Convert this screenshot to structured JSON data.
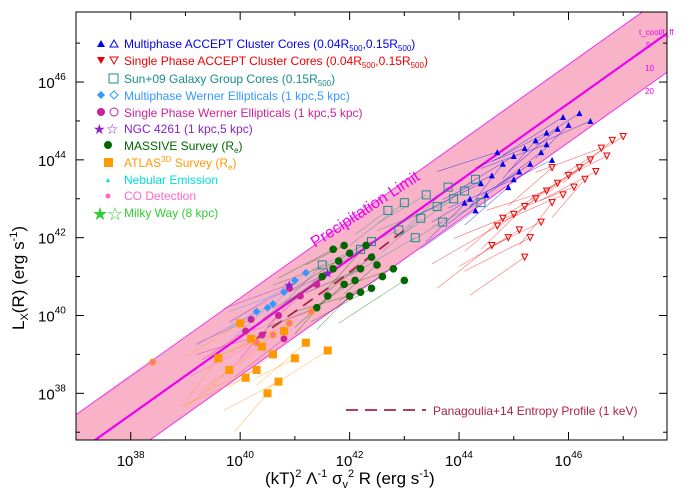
{
  "chart_data": {
    "type": "scatter",
    "title": "",
    "xlabel": "(kT)² Λ⁻¹ σᵥ² R (erg s⁻¹)",
    "ylabel": "Lₓ(R)  (erg s⁻¹)",
    "x_log_range": [
      37.0,
      47.8
    ],
    "y_log_range": [
      36.8,
      47.8
    ],
    "x_tick_exponents": [
      38,
      40,
      42,
      44,
      46
    ],
    "y_tick_exponents": [
      38,
      40,
      42,
      44,
      46
    ],
    "x_tick_labels": [
      "10",
      "10",
      "10",
      "10",
      "10"
    ],
    "x_tick_sups": [
      "38",
      "40",
      "42",
      "44",
      "46"
    ],
    "y_tick_labels": [
      "10",
      "10",
      "10",
      "10",
      "10"
    ],
    "y_tick_sups": [
      "38",
      "40",
      "42",
      "44",
      "46"
    ],
    "precipitation_label": "Precipitation Limit",
    "band_label": "t_cool/t_ff",
    "band_ticks": [
      "5",
      "10",
      "20"
    ],
    "band": {
      "center_offset": -0.55,
      "upper_offset": 0.45,
      "lower_offset": -1.55,
      "slope": 1
    },
    "panagoulia_label": "Panagoulia+14 Entropy Profile (1 keV)",
    "legend": [
      {
        "label": "Multiphase ACCEPT Cluster Cores (0.04R500,0.15R500)",
        "color": "#0000ee",
        "marker": "triangle-up"
      },
      {
        "label": "Single Phase ACCEPT Cluster Cores (0.04R500,0.15R500)",
        "color": "#ee0000",
        "marker": "triangle-down"
      },
      {
        "label": "Sun+09 Galaxy Group Cores (0.15R500)",
        "color": "#1a8c8c",
        "marker": "square-open"
      },
      {
        "label": "Multiphase Werner Ellipticals (1 kpc,5 kpc)",
        "color": "#3399ff",
        "marker": "diamond"
      },
      {
        "label": "Single Phase Werner Ellipticals (1 kpc,5 kpc)",
        "color": "#cc2299",
        "marker": "circle"
      },
      {
        "label": "NGC 4261 (1 kpc,5 kpc)",
        "color": "#8822cc",
        "marker": "star"
      },
      {
        "label": "MASSIVE Survey (Re)",
        "color": "#006600",
        "marker": "circle-filled"
      },
      {
        "label": "ATLAS3D Survey (Re)",
        "color": "#ff9900",
        "marker": "square-filled"
      },
      {
        "label": "Nebular Emission",
        "color": "#00dddd",
        "marker": "small-triangle"
      },
      {
        "label": "CO Detection",
        "color": "#ff66cc",
        "marker": "small-circle"
      },
      {
        "label": "Milky Way (8 kpc)",
        "color": "#33cc33",
        "marker": "star-big"
      }
    ],
    "series": [
      {
        "name": "Multiphase ACCEPT Cluster Cores",
        "color": "#0000ee",
        "points": [
          [
            44.2,
            43.0
          ],
          [
            44.4,
            43.4
          ],
          [
            44.6,
            43.6
          ],
          [
            44.8,
            43.9
          ],
          [
            45.0,
            44.1
          ],
          [
            45.2,
            44.3
          ],
          [
            45.4,
            44.5
          ],
          [
            45.6,
            44.7
          ],
          [
            45.8,
            44.8
          ],
          [
            46.0,
            44.9
          ],
          [
            44.5,
            43.1
          ],
          [
            44.9,
            43.3
          ],
          [
            45.1,
            43.7
          ],
          [
            45.3,
            43.9
          ],
          [
            45.5,
            44.2
          ],
          [
            45.7,
            44.0
          ],
          [
            44.7,
            44.2
          ],
          [
            45.9,
            45.1
          ],
          [
            46.2,
            45.2
          ],
          [
            44.3,
            42.7
          ],
          [
            45.0,
            43.5
          ],
          [
            45.6,
            44.4
          ],
          [
            44.1,
            42.9
          ],
          [
            46.4,
            45.0
          ]
        ]
      },
      {
        "name": "Single Phase ACCEPT Cluster Cores",
        "color": "#ee0000",
        "points": [
          [
            44.8,
            42.5
          ],
          [
            45.0,
            42.6
          ],
          [
            45.2,
            42.8
          ],
          [
            45.4,
            43.0
          ],
          [
            45.6,
            43.2
          ],
          [
            45.8,
            43.4
          ],
          [
            46.0,
            43.6
          ],
          [
            46.2,
            43.8
          ],
          [
            46.4,
            44.0
          ],
          [
            46.6,
            44.3
          ],
          [
            45.1,
            42.2
          ],
          [
            45.3,
            42.0
          ],
          [
            45.5,
            42.4
          ],
          [
            45.7,
            42.9
          ],
          [
            45.9,
            43.1
          ],
          [
            46.1,
            43.3
          ],
          [
            46.3,
            43.5
          ],
          [
            46.5,
            43.7
          ],
          [
            44.6,
            41.8
          ],
          [
            45.2,
            41.5
          ],
          [
            44.9,
            42.0
          ],
          [
            45.7,
            43.8
          ],
          [
            46.8,
            44.5
          ],
          [
            47.0,
            44.6
          ],
          [
            46.7,
            44.1
          ],
          [
            44.7,
            42.3
          ]
        ]
      },
      {
        "name": "Sun+09 Galaxy Group Cores",
        "color": "#1a8c8c",
        "points": [
          [
            42.7,
            42.7
          ],
          [
            43.0,
            42.9
          ],
          [
            43.3,
            42.5
          ],
          [
            43.6,
            42.8
          ],
          [
            43.9,
            43.0
          ],
          [
            44.1,
            43.2
          ],
          [
            43.4,
            43.1
          ],
          [
            42.9,
            42.2
          ],
          [
            43.7,
            42.4
          ],
          [
            44.4,
            42.9
          ],
          [
            43.2,
            42.0
          ],
          [
            42.4,
            41.9
          ],
          [
            43.8,
            43.3
          ],
          [
            44.3,
            43.5
          ],
          [
            42.2,
            41.7
          ],
          [
            41.5,
            41.3
          ]
        ]
      },
      {
        "name": "Multiphase Werner Ellipticals",
        "color": "#3399ff",
        "points": [
          [
            40.5,
            40.2
          ],
          [
            40.6,
            40.3
          ],
          [
            40.3,
            40.1
          ],
          [
            41.2,
            41.1
          ],
          [
            41.0,
            40.9
          ],
          [
            40.8,
            40.6
          ]
        ]
      },
      {
        "name": "Single Phase Werner Ellipticals",
        "color": "#cc2299",
        "points": [
          [
            40.2,
            39.9
          ],
          [
            40.4,
            39.5
          ],
          [
            40.7,
            40.0
          ],
          [
            40.9,
            40.7
          ],
          [
            41.1,
            40.5
          ],
          [
            41.4,
            40.8
          ],
          [
            40.1,
            39.6
          ],
          [
            40.8,
            39.4
          ]
        ]
      },
      {
        "name": "NGC 4261",
        "color": "#8822cc",
        "points": [
          [
            40.9,
            40.8
          ],
          [
            41.6,
            41.1
          ]
        ]
      },
      {
        "name": "MASSIVE Survey",
        "color": "#006600",
        "points": [
          [
            41.5,
            41.0
          ],
          [
            41.8,
            41.4
          ],
          [
            42.0,
            41.6
          ],
          [
            42.2,
            41.2
          ],
          [
            42.4,
            41.5
          ],
          [
            41.6,
            40.5
          ],
          [
            42.1,
            40.9
          ],
          [
            41.9,
            41.8
          ],
          [
            42.3,
            41.8
          ],
          [
            41.7,
            41.2
          ],
          [
            42.5,
            41.3
          ],
          [
            42.6,
            41.0
          ],
          [
            42.8,
            41.2
          ],
          [
            43.0,
            40.9
          ],
          [
            41.4,
            40.2
          ],
          [
            42.0,
            40.5
          ],
          [
            42.4,
            40.7
          ],
          [
            42.2,
            40.6
          ],
          [
            41.7,
            41.7
          ],
          [
            41.9,
            40.8
          ]
        ]
      },
      {
        "name": "ATLAS3D Survey",
        "color": "#ff9900",
        "points": [
          [
            39.6,
            38.9
          ],
          [
            40.1,
            38.4
          ],
          [
            40.3,
            38.6
          ],
          [
            40.5,
            38.0
          ],
          [
            40.2,
            39.4
          ],
          [
            40.6,
            39.0
          ],
          [
            40.8,
            39.6
          ],
          [
            41.0,
            38.9
          ],
          [
            40.0,
            39.8
          ],
          [
            39.8,
            38.6
          ],
          [
            40.7,
            38.3
          ],
          [
            41.2,
            39.3
          ],
          [
            41.6,
            39.1
          ],
          [
            40.4,
            39.2
          ]
        ]
      },
      {
        "name": "CO Detection",
        "color": "#ff66cc",
        "points": [
          [
            38.4,
            38.8
          ],
          [
            40.3,
            39.3
          ],
          [
            40.6,
            39.5
          ],
          [
            40.9,
            39.8
          ],
          [
            41.3,
            40.1
          ]
        ]
      }
    ]
  }
}
